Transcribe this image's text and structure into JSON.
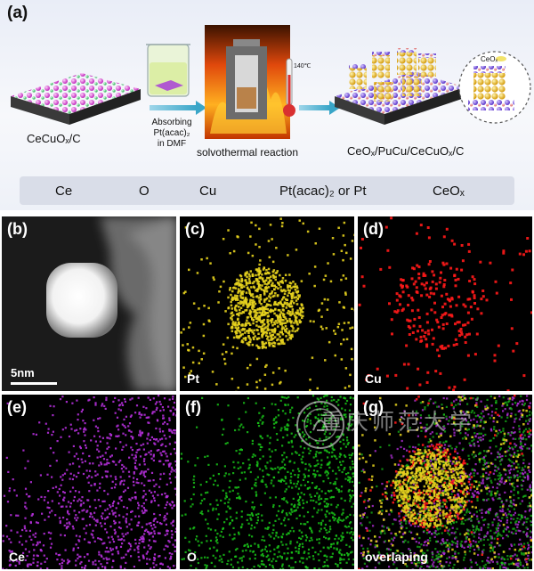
{
  "panel_a": {
    "label": "(a)",
    "substrate_label": "CeCuOₓ/C",
    "absorb_caption_1": "Absorbing Pt(acac)₂",
    "absorb_caption_2": "in DMF",
    "reaction_caption": "solvothermal reaction",
    "thermometer_label": "140℃",
    "product_label": "CeOₓ/PuCu/CeCuOₓ/C",
    "inset_label": "CeOₓ",
    "legend": [
      {
        "name": "Ce",
        "color": "#e04bdc"
      },
      {
        "name": "O",
        "color": "#3ddc6a"
      },
      {
        "name": "Cu",
        "color": "#f28a8a"
      },
      {
        "name": "Pt(acac)₂ or Pt",
        "color": "#f2c81c"
      },
      {
        "name": "CeOₓ",
        "color": "#7b52e6"
      }
    ]
  },
  "panels": {
    "b": {
      "label": "(b)",
      "scale": "5nm"
    },
    "c": {
      "label": "(c)",
      "element": "Pt",
      "color": "#e6d21e"
    },
    "d": {
      "label": "(d)",
      "element": "Cu",
      "color": "#ff1a1a"
    },
    "e": {
      "label": "(e)",
      "element": "Ce",
      "color": "#b22fd8"
    },
    "f": {
      "label": "(f)",
      "element": "O",
      "color": "#19c219"
    },
    "g": {
      "label": "(g)",
      "element": "overlaping"
    }
  },
  "watermark": {
    "text": "重庆师范大学"
  }
}
